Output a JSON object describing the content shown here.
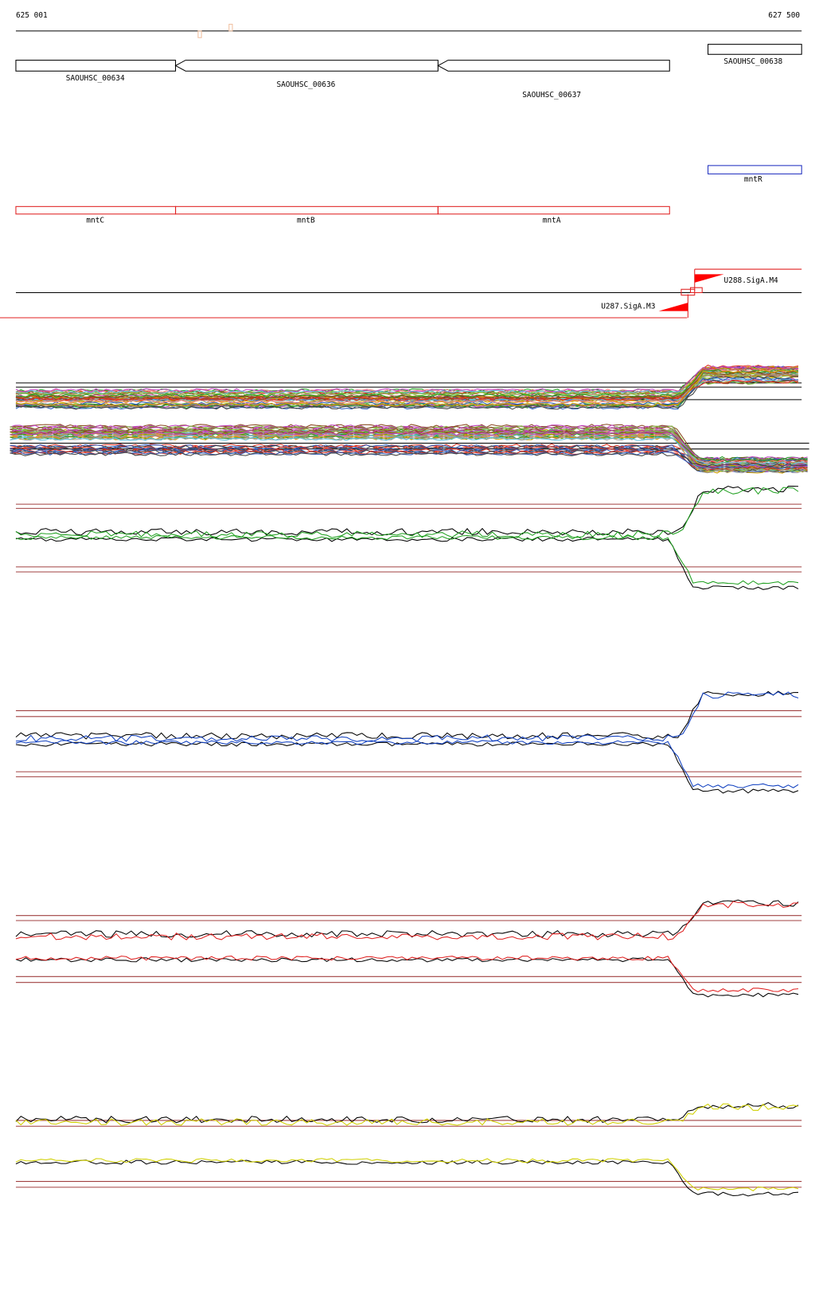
{
  "ruler": {
    "start": "625 001",
    "end": "627 500"
  },
  "genes": [
    {
      "label": "SAOUHSC_00634"
    },
    {
      "label": "SAOUHSC_00636"
    },
    {
      "label": "SAOUHSC_00637"
    },
    {
      "label": "SAOUHSC_00638"
    }
  ],
  "regulator": {
    "label": "mntR"
  },
  "operon": [
    {
      "label": "mntC"
    },
    {
      "label": "mntB"
    },
    {
      "label": "mntA"
    }
  ],
  "promoters": [
    {
      "label": "U288.SigA.M4"
    },
    {
      "label": "U287.SigA.M3"
    }
  ]
}
